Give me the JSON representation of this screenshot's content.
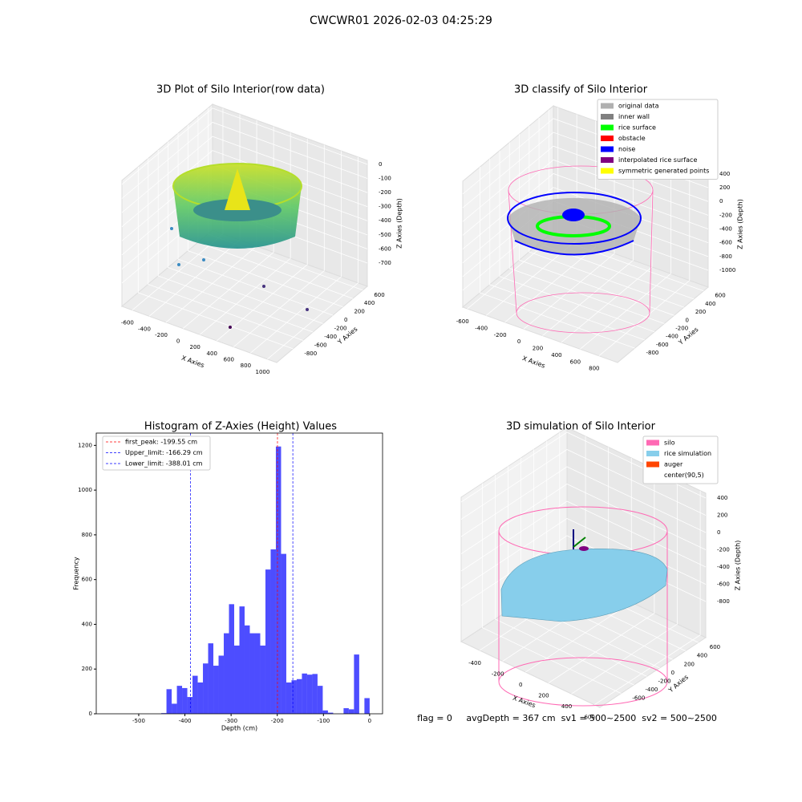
{
  "title": "CWCWR01 2026-02-03 04:25:29",
  "footer": "flag = 0     avgDepth = 367 cm  sv1 = 500~2500  sv2 = 500~2500",
  "chart_data": [
    {
      "type": "scatter3d",
      "title": "3D Plot of Silo Interior(row data)",
      "xlabel": "X Axies",
      "ylabel": "Y Axies",
      "zlabel": "Z Axies (Depth)",
      "xlim": [
        -723,
        1110
      ],
      "xticks": [
        -600,
        -400,
        -200,
        0,
        200,
        400,
        600,
        800,
        1000
      ],
      "ylim": [
        -1127,
        691
      ],
      "yticks": [
        -800,
        -600,
        -400,
        -200,
        0,
        200,
        400,
        600
      ],
      "zlim": [
        -865,
        28
      ],
      "zticks": [
        0,
        -100,
        -200,
        -300,
        -400,
        -500,
        -600,
        -700
      ]
    },
    {
      "type": "scatter3d",
      "title": "3D classify of Silo Interior",
      "xlabel": "X Axies",
      "ylabel": "Y Axies",
      "zlabel": "Z Axies (Depth)",
      "xlim": [
        -649,
        998
      ],
      "xticks": [
        -600,
        -400,
        -200,
        0,
        200,
        400,
        600,
        800
      ],
      "ylim": [
        -1150,
        692
      ],
      "yticks": [
        -800,
        -600,
        -400,
        -200,
        0,
        200,
        400,
        600
      ],
      "zlim": [
        -1245,
        585
      ],
      "zticks": [
        -1000,
        -800,
        -600,
        -400,
        -200,
        0,
        200,
        400
      ],
      "legend": [
        {
          "name": "original data",
          "color": "#b0b0b0"
        },
        {
          "name": "inner wall",
          "color": "#808080"
        },
        {
          "name": "rice surface",
          "color": "#00ff00"
        },
        {
          "name": "obstacle",
          "color": "#ff0000"
        },
        {
          "name": "noise",
          "color": "#0000ff"
        },
        {
          "name": "interpolated rice surface",
          "color": "#800080"
        },
        {
          "name": "symmetric generated points",
          "color": "#ffff00"
        }
      ]
    },
    {
      "type": "histogram",
      "title": "Histogram of Z-Axies (Height) Values",
      "xlabel": "Depth (cm)",
      "ylabel": "Frequency",
      "color": "#4d4dff",
      "bins": [
        -564,
        -552.72,
        -541.44,
        -530.16,
        -518.88,
        -507.6,
        -496.32,
        -485.04,
        -473.76,
        -462.48,
        -451.2,
        -439.92,
        -428.64,
        -417.36,
        -406.08,
        -394.8,
        -383.52,
        -372.24,
        -360.96,
        -349.68,
        -338.4,
        -327.12,
        -315.84,
        -304.56,
        -293.28,
        -282,
        -270.72,
        -259.44,
        -248.16,
        -236.88,
        -225.6,
        -214.32,
        -203.04,
        -191.76,
        -180.48,
        -169.2,
        -157.92,
        -146.64,
        -135.36,
        -124.08,
        -112.8,
        -101.52,
        -90.24,
        -78.96,
        -67.68,
        -56.4,
        -45.12,
        -33.84,
        -22.56,
        -11.28,
        0
      ],
      "counts": [
        0,
        0,
        0,
        0,
        0,
        0,
        0,
        0,
        0,
        0,
        3,
        110,
        45,
        125,
        115,
        75,
        170,
        140,
        225,
        315,
        215,
        260,
        360,
        490,
        305,
        480,
        395,
        360,
        360,
        305,
        645,
        735,
        1195,
        715,
        140,
        150,
        155,
        180,
        175,
        178,
        125,
        15,
        5,
        0,
        0,
        25,
        20,
        265,
        0,
        70
      ],
      "xlim": [
        -592,
        28
      ],
      "xticks": [
        -500,
        -400,
        -300,
        -200,
        -100,
        0
      ],
      "ylim": [
        0,
        1255
      ],
      "yticks": [
        0,
        200,
        400,
        600,
        800,
        1000,
        1200
      ],
      "lines": [
        {
          "label": "first_peak: -199.55 cm",
          "value": -199.55,
          "color": "#ff0000"
        },
        {
          "label": "Upper_limit: -166.29 cm",
          "value": -166.29,
          "color": "#0000ff"
        },
        {
          "label": "Lower_limit: -388.01 cm",
          "value": -388.01,
          "color": "#0000ff"
        }
      ]
    },
    {
      "type": "surface3d",
      "title": "3D simulation of Silo Interior",
      "xlabel": "X Axies",
      "ylabel": "Y Axies",
      "zlabel": "Z Axies (Depth)",
      "xlim": [
        -561,
        648
      ],
      "xticks": [
        -400,
        -200,
        0,
        200,
        400,
        600
      ],
      "ylim": [
        -929,
        715
      ],
      "yticks": [
        -600,
        -400,
        -200,
        0,
        200,
        400,
        600
      ],
      "zlim": [
        -1219,
        456
      ],
      "zticks": [
        -800,
        -600,
        -400,
        -200,
        0,
        200,
        400
      ],
      "legend": [
        {
          "name": "silo",
          "color": "#ff69b4"
        },
        {
          "name": "rice simulation",
          "color": "#87ceeb"
        },
        {
          "name": "auger",
          "color": "#ff4500"
        },
        {
          "name": "center(90,5)",
          "color": "#ffffff"
        }
      ]
    }
  ]
}
